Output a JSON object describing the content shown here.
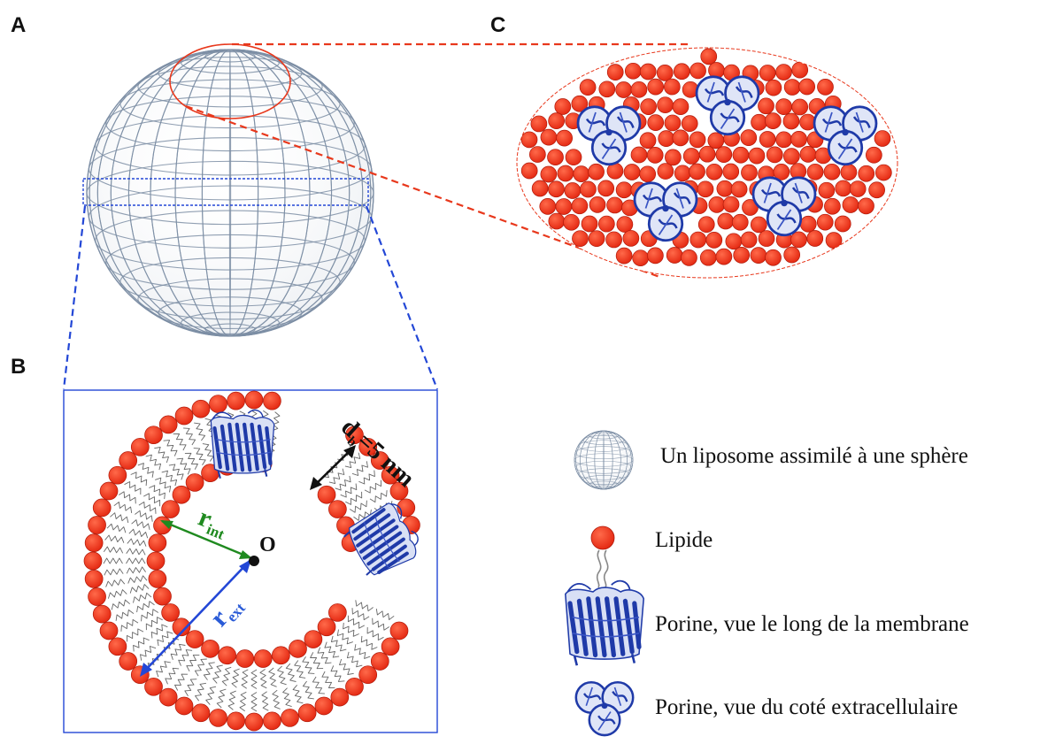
{
  "panels": {
    "a": "A",
    "b": "B",
    "c": "C"
  },
  "labels": {
    "r_int_main": "r",
    "r_int_sub": "int",
    "r_ext_main": "r",
    "r_ext_sub": "ext",
    "center": "O",
    "thickness_d": "d",
    "thickness_sub": "b",
    "thickness_value": "=5 nm"
  },
  "legend": {
    "sphere": "Un liposome assimilé à une sphère",
    "lipid": "Lipide",
    "porin_side": "Porine, vue le long de la membrane",
    "porin_top": "Porine, vue du coté extracellulaire"
  },
  "colors": {
    "lipid_head": "#ee2b16",
    "lipid_edge": "#b01a0a",
    "mesh": "#7d8ea5",
    "zoom_red": "#e8381c",
    "zoom_blue": "#2347d6",
    "porin": "#1f3aa8",
    "green_arrow": "#1f8a1f",
    "blue_arrow": "#2a5bd7"
  }
}
